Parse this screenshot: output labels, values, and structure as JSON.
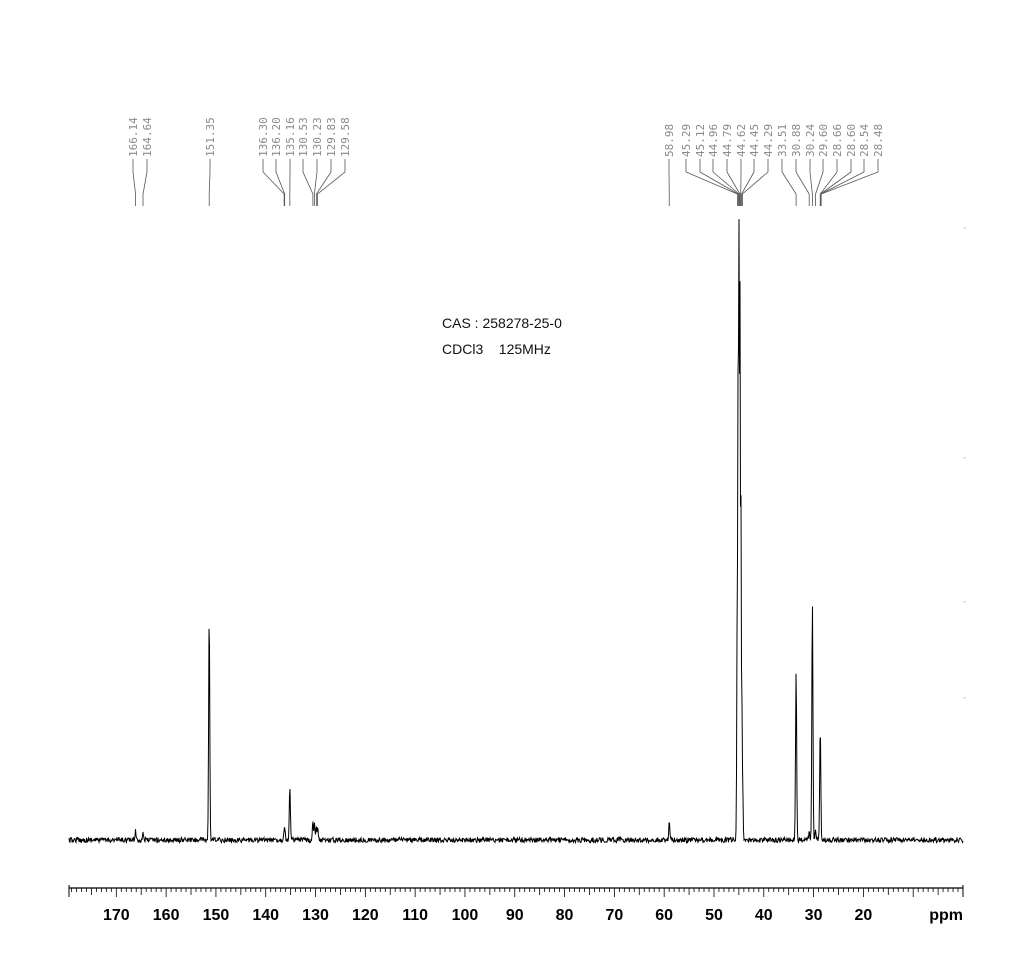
{
  "chart_data": {
    "type": "line",
    "title": "",
    "xlabel": "ppm",
    "ylabel": "",
    "x_reversed": true,
    "xlim": [
      179.5,
      0
    ],
    "x_ticks": [
      170,
      160,
      150,
      140,
      130,
      120,
      110,
      100,
      90,
      80,
      70,
      60,
      50,
      40,
      30,
      20
    ],
    "annotations": [
      "CAS : 258278-25-0",
      "CDCl3    125MHz"
    ],
    "peak_labels": [
      "166.14",
      "164.64",
      "151.35",
      "136.30",
      "136.20",
      "135.16",
      "130.53",
      "130.23",
      "129.83",
      "129.58",
      "58.98",
      "45.29",
      "45.12",
      "44.96",
      "44.79",
      "44.62",
      "44.45",
      "44.29",
      "33.51",
      "30.88",
      "30.24",
      "29.60",
      "28.66",
      "28.60",
      "28.54",
      "28.48"
    ],
    "peaks": [
      {
        "ppm": 166.14,
        "height": 0.015
      },
      {
        "ppm": 164.64,
        "height": 0.013
      },
      {
        "ppm": 151.35,
        "height": 0.36
      },
      {
        "ppm": 136.3,
        "height": 0.018
      },
      {
        "ppm": 136.2,
        "height": 0.02
      },
      {
        "ppm": 135.16,
        "height": 0.085
      },
      {
        "ppm": 130.53,
        "height": 0.03
      },
      {
        "ppm": 130.23,
        "height": 0.028
      },
      {
        "ppm": 129.83,
        "height": 0.022
      },
      {
        "ppm": 129.58,
        "height": 0.02
      },
      {
        "ppm": 58.98,
        "height": 0.03
      },
      {
        "ppm": 45.29,
        "height": 0.45
      },
      {
        "ppm": 45.12,
        "height": 0.85
      },
      {
        "ppm": 44.96,
        "height": 1.0
      },
      {
        "ppm": 44.79,
        "height": 0.9
      },
      {
        "ppm": 44.62,
        "height": 0.6
      },
      {
        "ppm": 44.45,
        "height": 0.28
      },
      {
        "ppm": 44.29,
        "height": 0.12
      },
      {
        "ppm": 33.51,
        "height": 0.27
      },
      {
        "ppm": 30.88,
        "height": 0.014
      },
      {
        "ppm": 30.24,
        "height": 0.38
      },
      {
        "ppm": 29.6,
        "height": 0.014
      },
      {
        "ppm": 28.66,
        "height": 0.18
      },
      {
        "ppm": 28.6,
        "height": 0.02
      },
      {
        "ppm": 28.54,
        "height": 0.015
      },
      {
        "ppm": 28.48,
        "height": 0.012
      }
    ],
    "grid": false,
    "legend": "none"
  }
}
